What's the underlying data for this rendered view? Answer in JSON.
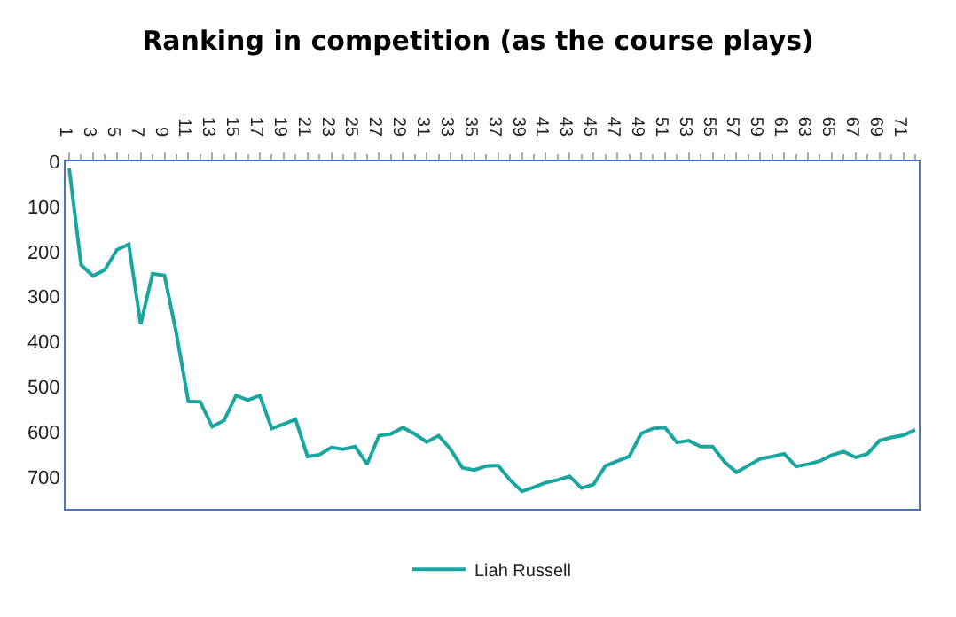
{
  "chart_data": {
    "type": "line",
    "title": "Ranking in competition (as the course plays)",
    "categories": [
      "1",
      null,
      "3",
      null,
      "5",
      null,
      "7",
      null,
      "9",
      null,
      "11",
      null,
      "13",
      null,
      "15",
      null,
      "17",
      null,
      "19",
      null,
      "21",
      null,
      "23",
      null,
      "25",
      null,
      "27",
      null,
      "29",
      null,
      "31",
      null,
      "33",
      null,
      "35",
      null,
      "37",
      null,
      "39",
      null,
      "41",
      null,
      "43",
      null,
      "45",
      null,
      "47",
      null,
      "49",
      null,
      "51",
      null,
      "53",
      null,
      "55",
      null,
      "57",
      null,
      "59",
      null,
      "61",
      null,
      "63",
      null,
      "65",
      null,
      "67",
      null,
      "69",
      null,
      "71",
      null
    ],
    "series": [
      {
        "name": "Liah Russell",
        "color": "#1aa6a0",
        "values": [
          15,
          230,
          254,
          240,
          196,
          184,
          361,
          249,
          253,
          382,
          532,
          533,
          588,
          574,
          519,
          529,
          519,
          592,
          582,
          572,
          654,
          650,
          634,
          638,
          632,
          671,
          608,
          604,
          590,
          604,
          622,
          608,
          638,
          679,
          684,
          675,
          674,
          706,
          731,
          722,
          712,
          706,
          698,
          724,
          716,
          675,
          664,
          654,
          603,
          592,
          590,
          623,
          619,
          632,
          632,
          666,
          689,
          674,
          659,
          654,
          648,
          676,
          671,
          664,
          651,
          643,
          656,
          648,
          619,
          612,
          607,
          595
        ]
      }
    ],
    "ylim": [
      770,
      0
    ],
    "yticks": [
      0,
      100,
      200,
      300,
      400,
      500,
      600,
      700
    ],
    "grid": false,
    "legend": "bottom",
    "marker": "none",
    "line_style": "solid"
  }
}
